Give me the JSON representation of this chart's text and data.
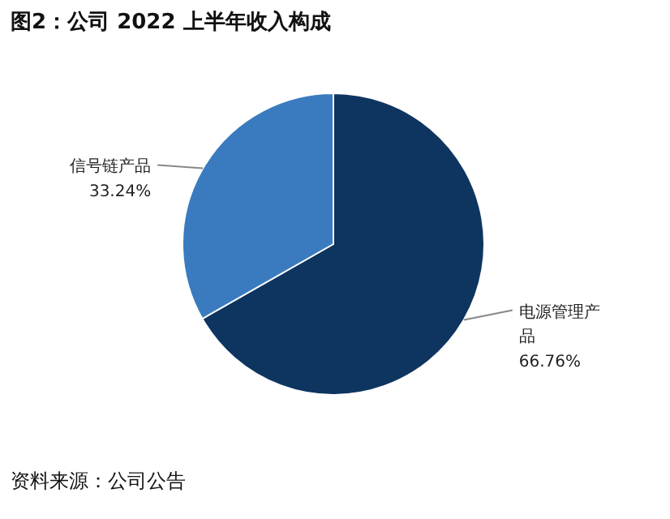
{
  "chart_data": {
    "type": "pie",
    "title": "图2：公司 2022 上半年收入构成",
    "categories": [
      "电源管理产品",
      "信号链产品"
    ],
    "values": [
      66.76,
      33.24
    ],
    "value_labels": [
      "66.76%",
      "33.24%"
    ],
    "colors": [
      "#0e3560",
      "#3a7bbf"
    ],
    "annotations": [
      "资料来源：公司公告"
    ]
  }
}
